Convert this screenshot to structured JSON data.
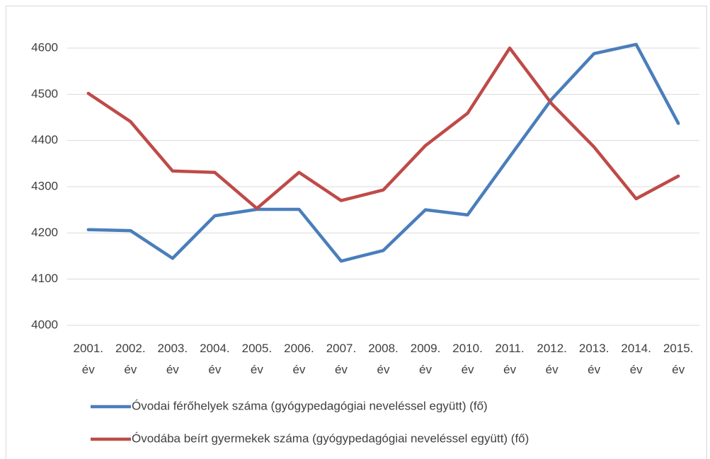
{
  "chart_data": {
    "type": "line",
    "categories": [
      "2001. év",
      "2002. év",
      "2003. év",
      "2004. év",
      "2005. év",
      "2006. év",
      "2007. év",
      "2008. év",
      "2009. év",
      "2010. év",
      "2011. év",
      "2012. év",
      "2013. év",
      "2014. év",
      "2015. év"
    ],
    "series": [
      {
        "name": "Óvodai férőhelyek száma  (gyógypedagógiai neveléssel együtt) (fő)",
        "color": "#4a7ebb",
        "values": [
          4207,
          4205,
          4145,
          4237,
          4251,
          4251,
          4139,
          4162,
          4250,
          4239,
          4365,
          4490,
          4588,
          4608,
          4437
        ]
      },
      {
        "name": "Óvodába beírt gyermekek száma (gyógypedagógiai neveléssel együtt) (fő)",
        "color": "#be4b48",
        "values": [
          4502,
          4441,
          4334,
          4331,
          4253,
          4331,
          4270,
          4293,
          4389,
          4459,
          4600,
          4479,
          4386,
          4274,
          4323
        ]
      }
    ],
    "ylim": [
      4000,
      4600
    ],
    "yticks": [
      4000,
      4100,
      4200,
      4300,
      4400,
      4500,
      4600
    ],
    "grid": true,
    "legend": "bottom"
  }
}
